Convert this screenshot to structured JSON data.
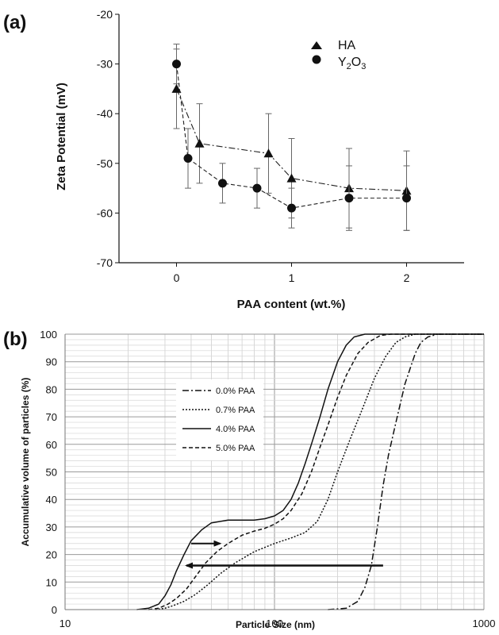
{
  "chart_data": [
    {
      "panel_label": "(a)",
      "type": "scatter",
      "xlabel": "PAA content (wt.%)",
      "ylabel": "Zeta Potential (mV)",
      "xlim": [
        -0.5,
        2.5
      ],
      "ylim": [
        -70,
        -20
      ],
      "xticks": [
        0,
        1,
        2
      ],
      "xtick_labels": [
        "0",
        "1",
        "2"
      ],
      "yticks": [
        -70,
        -60,
        -50,
        -40,
        -30,
        -20
      ],
      "ytick_labels": [
        "-70",
        "-60",
        "-50",
        "-40",
        "-30",
        "-20"
      ],
      "legend_position": "top-right",
      "series": [
        {
          "name": "HA",
          "marker": "triangle",
          "line": "dash-dot",
          "x": [
            0,
            0.2,
            0.8,
            1.0,
            1.5,
            2.0
          ],
          "y": [
            -35,
            -46,
            -48,
            -53,
            -55,
            -55.5
          ],
          "err": [
            8,
            8,
            8,
            8,
            8,
            8
          ]
        },
        {
          "name": "Y2O3",
          "name_base": "Y",
          "name_sub1": "2",
          "name_mid": "O",
          "name_sub2": "3",
          "marker": "circle",
          "line": "dashed",
          "x": [
            0,
            0.1,
            0.4,
            0.7,
            1.0,
            1.5,
            2.0
          ],
          "y": [
            -30,
            -49,
            -54,
            -55,
            -59,
            -57,
            -57
          ],
          "err": [
            4,
            6,
            4,
            4,
            4,
            6.5,
            6.5
          ]
        }
      ]
    },
    {
      "panel_label": "(b)",
      "type": "line",
      "xscale": "log",
      "xlabel": "Particle Size (nm)",
      "ylabel": "Accumulative volume of particles (%)",
      "xlim": [
        10,
        1000
      ],
      "ylim": [
        0,
        100
      ],
      "xticks": [
        10,
        100,
        1000
      ],
      "xtick_labels": [
        "10",
        "100",
        "1000"
      ],
      "yticks": [
        0,
        10,
        20,
        30,
        40,
        50,
        60,
        70,
        80,
        90,
        100
      ],
      "ytick_labels": [
        "0",
        "10",
        "20",
        "30",
        "40",
        "50",
        "60",
        "70",
        "80",
        "90",
        "100"
      ],
      "grid": true,
      "legend_position": "center-left",
      "series": [
        {
          "name": "0.0% PAA",
          "line": "dash-dot",
          "x": [
            180,
            220,
            250,
            270,
            290,
            310,
            330,
            350,
            380,
            420,
            470,
            500,
            540,
            600,
            700,
            1000
          ],
          "y": [
            0,
            0.5,
            3,
            8,
            16,
            30,
            45,
            56,
            68,
            82,
            93,
            97,
            99,
            100,
            100,
            100
          ]
        },
        {
          "name": "0.7% PAA",
          "line": "dotted",
          "x": [
            27,
            30,
            33,
            37,
            42,
            48,
            55,
            65,
            80,
            100,
            120,
            140,
            160,
            180,
            200,
            230,
            260,
            300,
            340,
            380,
            420,
            470,
            550,
            700,
            1000
          ],
          "y": [
            0,
            0.5,
            1.5,
            3,
            5.5,
            9,
            13,
            17,
            21,
            24,
            26,
            28,
            32,
            40,
            50,
            62,
            72,
            84,
            92,
            97,
            99,
            100,
            100,
            100,
            100
          ]
        },
        {
          "name": "4.0% PAA",
          "line": "solid",
          "x": [
            22,
            25,
            28,
            30,
            32,
            34,
            37,
            40,
            45,
            50,
            60,
            70,
            80,
            90,
            100,
            110,
            120,
            130,
            140,
            150,
            165,
            180,
            200,
            220,
            240,
            270,
            300,
            400,
            1000
          ],
          "y": [
            0,
            0.5,
            2,
            5,
            9,
            14,
            20,
            25,
            29,
            31.5,
            32.5,
            32.5,
            32.5,
            33,
            34,
            36,
            40,
            46,
            53,
            60,
            70,
            80,
            90,
            96,
            99,
            100,
            100,
            100,
            100
          ]
        },
        {
          "name": "5.0% PAA",
          "line": "dashed",
          "x": [
            25,
            28,
            31,
            34,
            38,
            42,
            47,
            53,
            60,
            70,
            80,
            90,
            100,
            110,
            120,
            135,
            150,
            165,
            180,
            200,
            220,
            250,
            280,
            320,
            360,
            400,
            500,
            1000
          ],
          "y": [
            0,
            0.5,
            2,
            4,
            7.5,
            12,
            17,
            21,
            24,
            27,
            28.5,
            29.5,
            31,
            33,
            36,
            42,
            50,
            59,
            67,
            77,
            85,
            93,
            97,
            99.5,
            100,
            100,
            100,
            100
          ]
        }
      ],
      "annotations": [
        {
          "type": "arrow",
          "from": [
            40,
            24
          ],
          "to": [
            55,
            24
          ]
        },
        {
          "type": "arrow",
          "from": [
            330,
            16
          ],
          "to": [
            38,
            16
          ]
        }
      ]
    }
  ]
}
